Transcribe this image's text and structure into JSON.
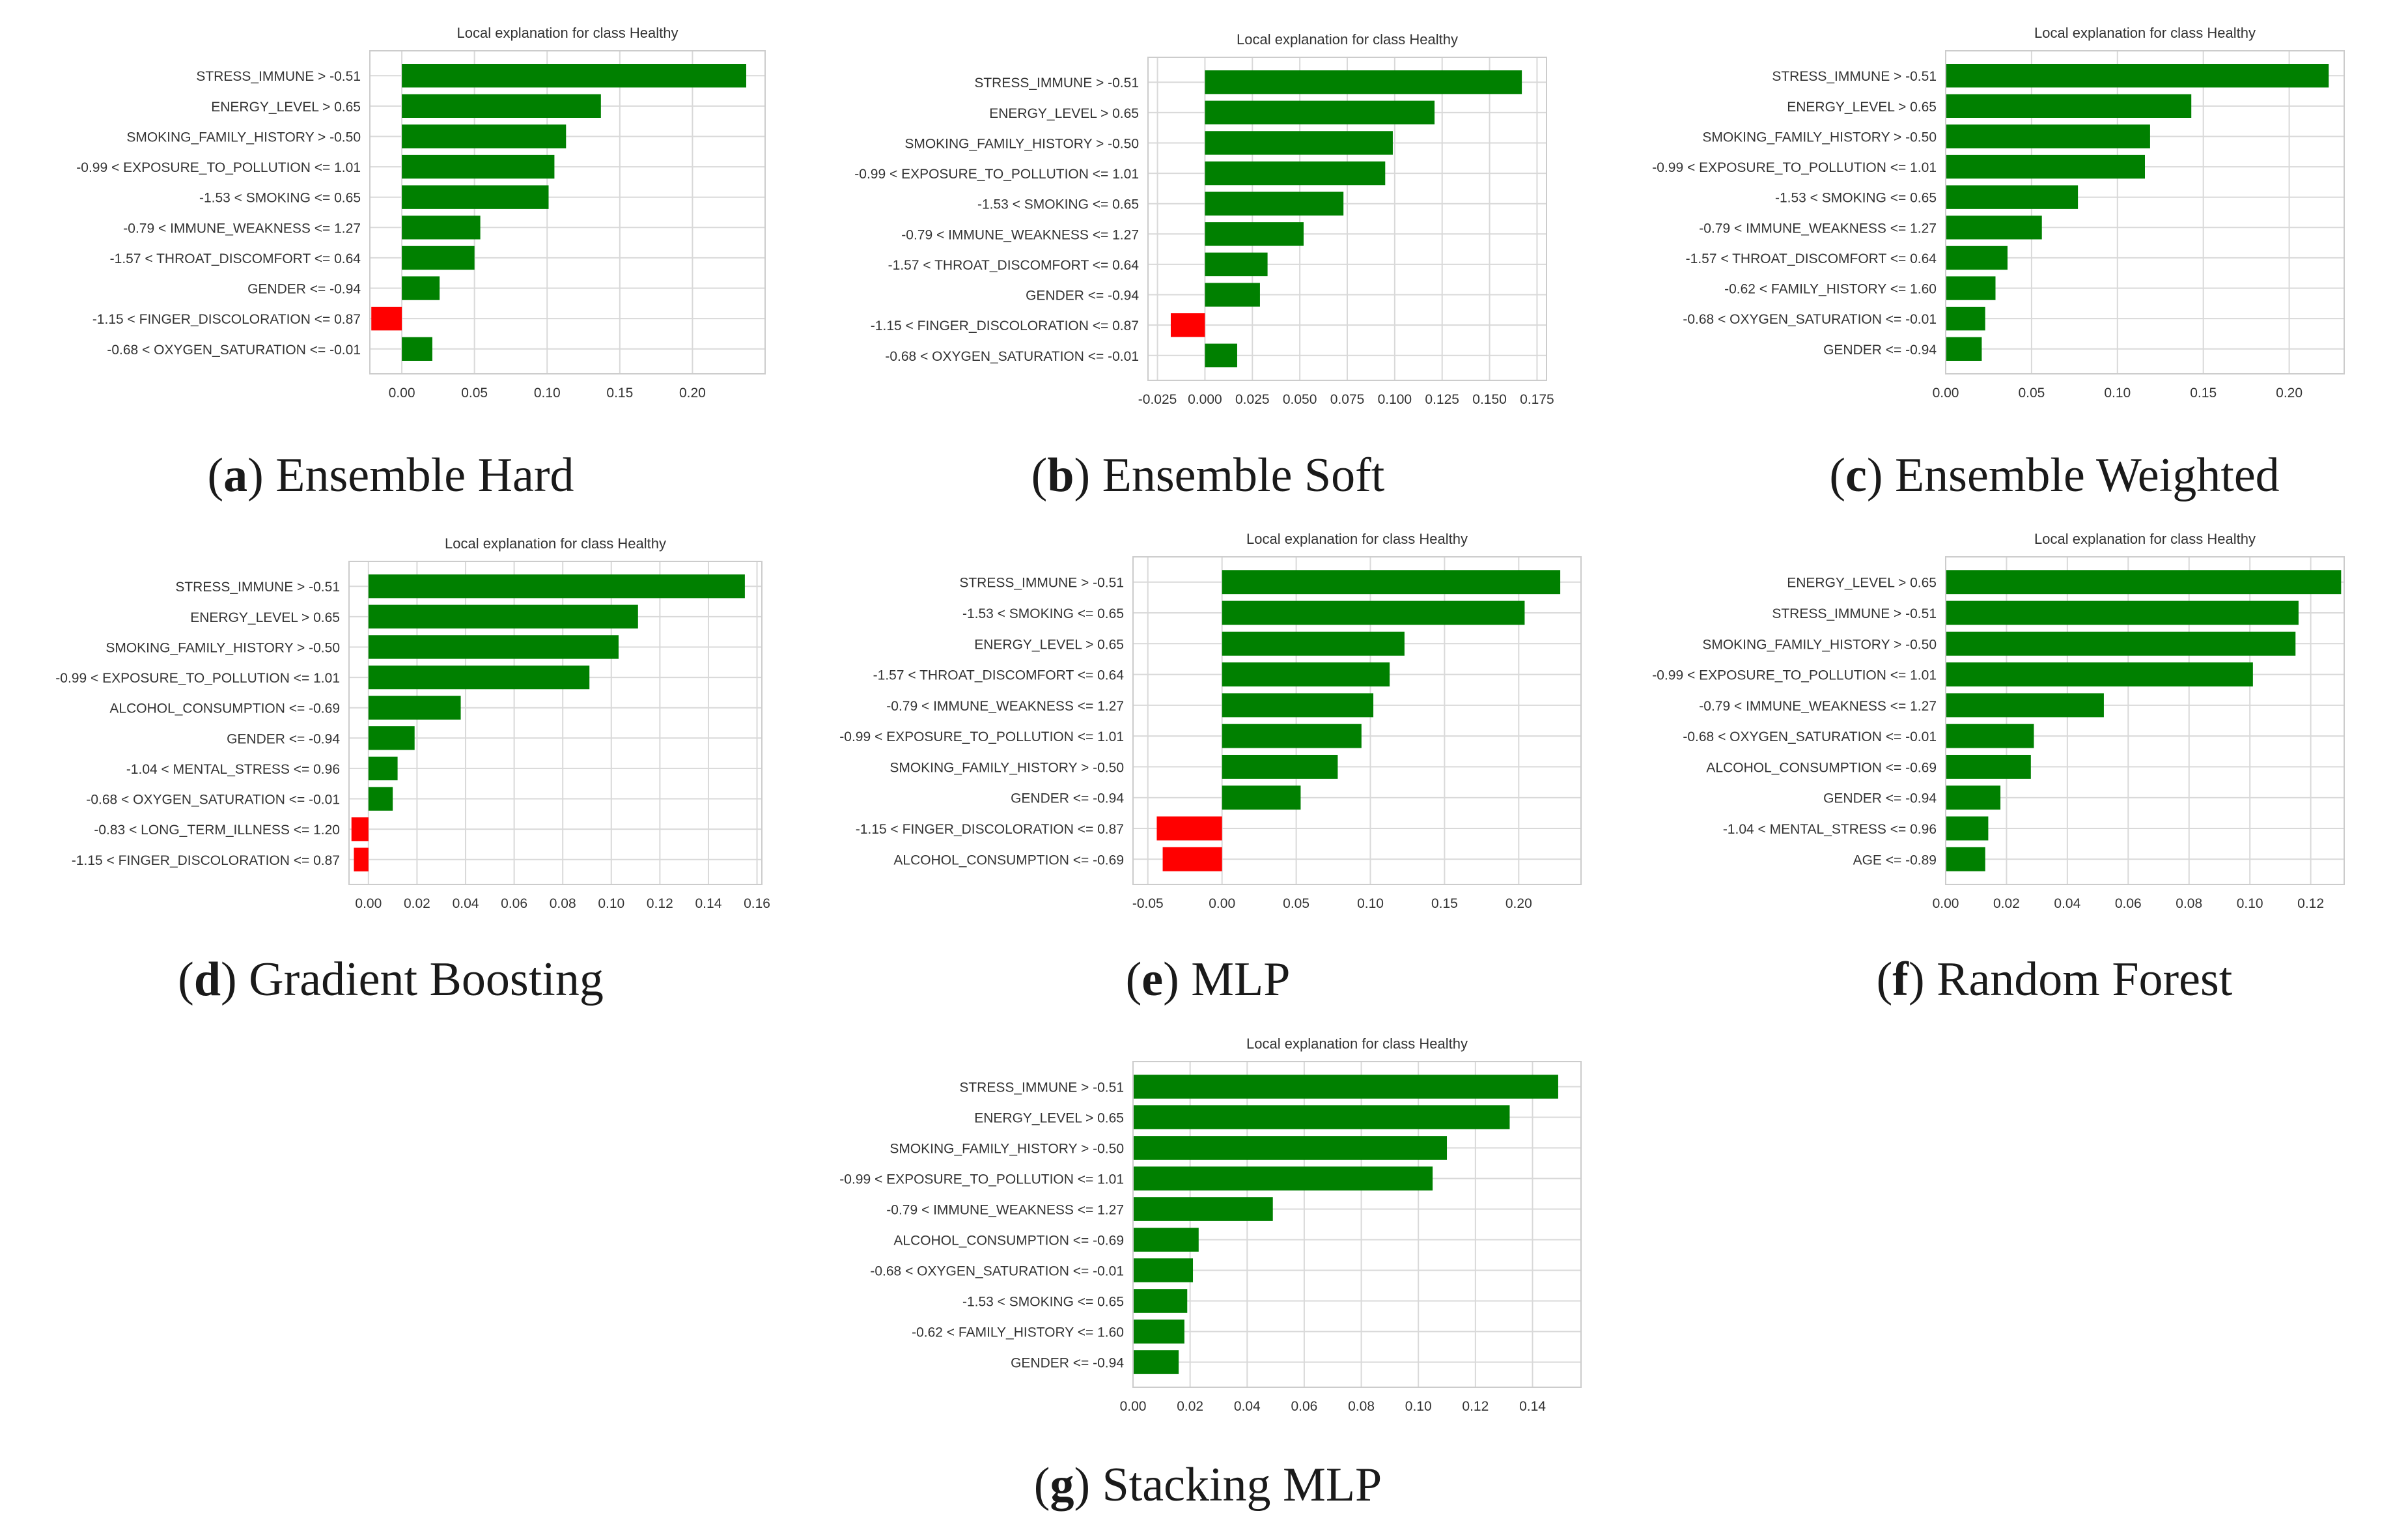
{
  "colors": {
    "positive": "#008000",
    "negative": "#ff0000",
    "grid": "#d9d9d9",
    "frame": "#cccccc",
    "text": "#333333"
  },
  "chart_data": [
    {
      "type": "bar",
      "title": "Local explanation for class Healthy",
      "caption_letter": "a",
      "caption_text": "Ensemble Hard",
      "xlim": [
        -0.022,
        0.25
      ],
      "xticks": [
        0.0,
        0.05,
        0.1,
        0.15,
        0.2
      ],
      "xtick_labels": [
        "0.00",
        "0.05",
        "0.10",
        "0.15",
        "0.20"
      ],
      "categories": [
        "STRESS_IMMUNE > -0.51",
        "ENERGY_LEVEL > 0.65",
        "SMOKING_FAMILY_HISTORY > -0.50",
        "-0.99 < EXPOSURE_TO_POLLUTION <= 1.01",
        "-1.53 < SMOKING <= 0.65",
        "-0.79 < IMMUNE_WEAKNESS <= 1.27",
        "-1.57 < THROAT_DISCOMFORT <= 0.64",
        "GENDER <= -0.94",
        "-1.15 < FINGER_DISCOLORATION <= 0.87",
        "-0.68 < OXYGEN_SATURATION <= -0.01"
      ],
      "values": [
        0.237,
        0.137,
        0.113,
        0.105,
        0.101,
        0.054,
        0.05,
        0.026,
        -0.021,
        0.021
      ]
    },
    {
      "type": "bar",
      "title": "Local explanation for class Healthy",
      "caption_letter": "b",
      "caption_text": "Ensemble Soft",
      "xlim": [
        -0.03,
        0.18
      ],
      "xticks": [
        -0.025,
        0.0,
        0.025,
        0.05,
        0.075,
        0.1,
        0.125,
        0.15,
        0.175
      ],
      "xtick_labels": [
        "-0.025",
        "0.000",
        "0.025",
        "0.050",
        "0.075",
        "0.100",
        "0.125",
        "0.150",
        "0.175"
      ],
      "categories": [
        "STRESS_IMMUNE > -0.51",
        "ENERGY_LEVEL > 0.65",
        "SMOKING_FAMILY_HISTORY > -0.50",
        "-0.99 < EXPOSURE_TO_POLLUTION <= 1.01",
        "-1.53 < SMOKING <= 0.65",
        "-0.79 < IMMUNE_WEAKNESS <= 1.27",
        "-1.57 < THROAT_DISCOMFORT <= 0.64",
        "GENDER <= -0.94",
        "-1.15 < FINGER_DISCOLORATION <= 0.87",
        "-0.68 < OXYGEN_SATURATION <= -0.01"
      ],
      "values": [
        0.167,
        0.121,
        0.099,
        0.095,
        0.073,
        0.052,
        0.033,
        0.029,
        -0.018,
        0.017
      ]
    },
    {
      "type": "bar",
      "title": "Local explanation for class Healthy",
      "caption_letter": "c",
      "caption_text": "Ensemble Weighted",
      "xlim": [
        0,
        0.232
      ],
      "xticks": [
        0.0,
        0.05,
        0.1,
        0.15,
        0.2
      ],
      "xtick_labels": [
        "0.00",
        "0.05",
        "0.10",
        "0.15",
        "0.20"
      ],
      "categories": [
        "STRESS_IMMUNE > -0.51",
        "ENERGY_LEVEL > 0.65",
        "SMOKING_FAMILY_HISTORY > -0.50",
        "-0.99 < EXPOSURE_TO_POLLUTION <= 1.01",
        "-1.53 < SMOKING <= 0.65",
        "-0.79 < IMMUNE_WEAKNESS <= 1.27",
        "-1.57 < THROAT_DISCOMFORT <= 0.64",
        "-0.62 < FAMILY_HISTORY <= 1.60",
        "-0.68 < OXYGEN_SATURATION <= -0.01",
        "GENDER <= -0.94"
      ],
      "values": [
        0.223,
        0.143,
        0.119,
        0.116,
        0.077,
        0.056,
        0.036,
        0.029,
        0.023,
        0.021
      ]
    },
    {
      "type": "bar",
      "title": "Local explanation for class Healthy",
      "caption_letter": "d",
      "caption_text": "Gradient Boosting",
      "xlim": [
        -0.008,
        0.162
      ],
      "xticks": [
        0.0,
        0.02,
        0.04,
        0.06,
        0.08,
        0.1,
        0.12,
        0.14,
        0.16
      ],
      "xtick_labels": [
        "0.00",
        "0.02",
        "0.04",
        "0.06",
        "0.08",
        "0.10",
        "0.12",
        "0.14",
        "0.16"
      ],
      "categories": [
        "STRESS_IMMUNE > -0.51",
        "ENERGY_LEVEL > 0.65",
        "SMOKING_FAMILY_HISTORY > -0.50",
        "-0.99 < EXPOSURE_TO_POLLUTION <= 1.01",
        "ALCOHOL_CONSUMPTION <= -0.69",
        "GENDER <= -0.94",
        "-1.04 < MENTAL_STRESS <= 0.96",
        "-0.68 < OXYGEN_SATURATION <= -0.01",
        "-0.83 < LONG_TERM_ILLNESS <= 1.20",
        "-1.15 < FINGER_DISCOLORATION <= 0.87"
      ],
      "values": [
        0.155,
        0.111,
        0.103,
        0.091,
        0.038,
        0.019,
        0.012,
        0.01,
        -0.007,
        -0.006
      ]
    },
    {
      "type": "bar",
      "title": "Local explanation for class Healthy",
      "caption_letter": "e",
      "caption_text": "MLP",
      "xlim": [
        -0.06,
        0.242
      ],
      "xticks": [
        -0.05,
        0.0,
        0.05,
        0.1,
        0.15,
        0.2
      ],
      "xtick_labels": [
        "-0.05",
        "0.00",
        "0.05",
        "0.10",
        "0.15",
        "0.20"
      ],
      "categories": [
        "STRESS_IMMUNE > -0.51",
        "-1.53 < SMOKING <= 0.65",
        "ENERGY_LEVEL > 0.65",
        "-1.57 < THROAT_DISCOMFORT <= 0.64",
        "-0.79 < IMMUNE_WEAKNESS <= 1.27",
        "-0.99 < EXPOSURE_TO_POLLUTION <= 1.01",
        "SMOKING_FAMILY_HISTORY > -0.50",
        "GENDER <= -0.94",
        "-1.15 < FINGER_DISCOLORATION <= 0.87",
        "ALCOHOL_CONSUMPTION <= -0.69"
      ],
      "values": [
        0.228,
        0.204,
        0.123,
        0.113,
        0.102,
        0.094,
        0.078,
        0.053,
        -0.044,
        -0.04
      ]
    },
    {
      "type": "bar",
      "title": "Local explanation for class Healthy",
      "caption_letter": "f",
      "caption_text": "Random Forest",
      "xlim": [
        0,
        0.131
      ],
      "xticks": [
        0.0,
        0.02,
        0.04,
        0.06,
        0.08,
        0.1,
        0.12
      ],
      "xtick_labels": [
        "0.00",
        "0.02",
        "0.04",
        "0.06",
        "0.08",
        "0.10",
        "0.12"
      ],
      "categories": [
        "ENERGY_LEVEL > 0.65",
        "STRESS_IMMUNE > -0.51",
        "SMOKING_FAMILY_HISTORY > -0.50",
        "-0.99 < EXPOSURE_TO_POLLUTION <= 1.01",
        "-0.79 < IMMUNE_WEAKNESS <= 1.27",
        "-0.68 < OXYGEN_SATURATION <= -0.01",
        "ALCOHOL_CONSUMPTION <= -0.69",
        "GENDER <= -0.94",
        "-1.04 < MENTAL_STRESS <= 0.96",
        "AGE <= -0.89"
      ],
      "values": [
        0.13,
        0.116,
        0.115,
        0.101,
        0.052,
        0.029,
        0.028,
        0.018,
        0.014,
        0.013
      ]
    },
    {
      "type": "bar",
      "title": "Local explanation for class Healthy",
      "caption_letter": "g",
      "caption_text": "Stacking MLP",
      "xlim": [
        0,
        0.157
      ],
      "xticks": [
        0.0,
        0.02,
        0.04,
        0.06,
        0.08,
        0.1,
        0.12,
        0.14
      ],
      "xtick_labels": [
        "0.00",
        "0.02",
        "0.04",
        "0.06",
        "0.08",
        "0.10",
        "0.12",
        "0.14"
      ],
      "categories": [
        "STRESS_IMMUNE > -0.51",
        "ENERGY_LEVEL > 0.65",
        "SMOKING_FAMILY_HISTORY > -0.50",
        "-0.99 < EXPOSURE_TO_POLLUTION <= 1.01",
        "-0.79 < IMMUNE_WEAKNESS <= 1.27",
        "ALCOHOL_CONSUMPTION <= -0.69",
        "-0.68 < OXYGEN_SATURATION <= -0.01",
        "-1.53 < SMOKING <= 0.65",
        "-0.62 < FAMILY_HISTORY <= 1.60",
        "GENDER <= -0.94"
      ],
      "values": [
        0.149,
        0.132,
        0.11,
        0.105,
        0.049,
        0.023,
        0.021,
        0.019,
        0.018,
        0.016
      ]
    }
  ]
}
